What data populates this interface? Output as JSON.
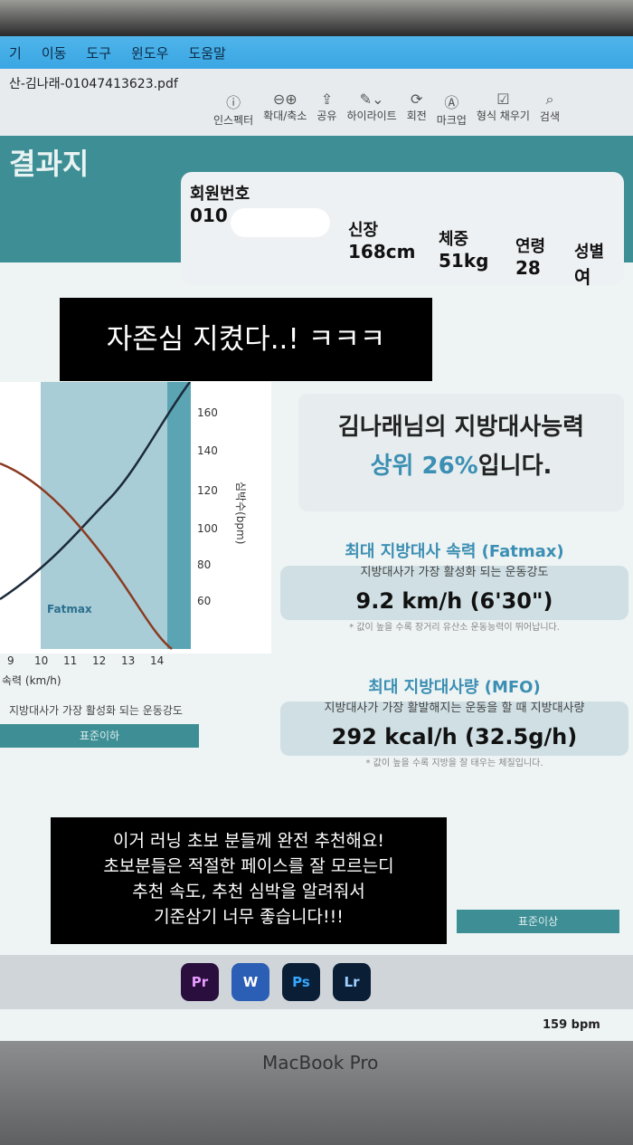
{
  "menubar": {
    "items": [
      "기",
      "이동",
      "도구",
      "윈도우",
      "도움말"
    ]
  },
  "window": {
    "filename": "산-김나래-01047413623.pdf"
  },
  "toolbar": {
    "items": [
      {
        "label": "인스펙터",
        "icon": "info-icon"
      },
      {
        "label": "확대/축소",
        "icon": "zoom-icon"
      },
      {
        "label": "공유",
        "icon": "share-icon"
      },
      {
        "label": "하이라이트",
        "icon": "pen-icon"
      },
      {
        "label": "회전",
        "icon": "rotate-icon"
      },
      {
        "label": "마크업",
        "icon": "markup-icon"
      },
      {
        "label": "형식 채우기",
        "icon": "form-icon"
      },
      {
        "label": "검색",
        "icon": "search-icon"
      }
    ]
  },
  "report": {
    "title": "결과지",
    "member_label": "회원번호",
    "member_value": "010",
    "height_label": "신장",
    "height_value": "168cm",
    "weight_label": "체중",
    "weight_value": "51kg",
    "age_label": "연령",
    "age_value": "28",
    "sex_label": "성별",
    "sex_value": "여",
    "summary_line1": "김나래님의 지방대사능력",
    "summary_rank": "상위 26%",
    "summary_suffix": "입니다.",
    "fatmax": {
      "title": "최대 지방대사 속력 (Fatmax)",
      "subtitle": "지방대사가 가장 활성화 되는 운동강도",
      "value": "9.2 km/h (6'30\")",
      "note": "* 값이 높을 수록 장거리 유산소 운동능력이 뛰어납니다."
    },
    "mfo": {
      "title": "최대 지방대사량 (MFO)",
      "subtitle": "지방대사가 가장 활발해지는 운동을 할 때 지방대사량",
      "value": "292 kcal/h   (32.5g/h)",
      "note": "* 값이 높을 수록 지방을 잘 태우는 체질입니다."
    },
    "chart": {
      "x_ticks": [
        "9",
        "10",
        "11",
        "12",
        "13",
        "14"
      ],
      "x_label": "속력 (km/h)",
      "y_ticks": [
        "160",
        "140",
        "120",
        "100",
        "80",
        "60"
      ],
      "y_label": "심박수(bpm)",
      "zone_label": "Fatmax",
      "caption": "지방대사가 가장 활성화 되는 운동강도"
    },
    "below_label": "표준이하",
    "above_label": "표준이상",
    "bpm": "159 bpm"
  },
  "dock": {
    "apps": [
      "Pr",
      "W",
      "Ps",
      "Lr"
    ]
  },
  "device": "MacBook Pro",
  "captions": {
    "top": "자존심 지켰다..! ㅋㅋㅋ",
    "bottom": [
      "이거 러닝 초보 분들께 완전 추천해요!",
      "초보분들은 적절한 페이스를 잘 모르는디",
      "추천 속도, 추천 심박을 알려줘서",
      "기준삼기 너무 좋습니다!!!"
    ]
  },
  "colors": {
    "teal": "#3e8f95",
    "accent_blue": "#3b8fb3",
    "menubar": "#3aa6e3"
  }
}
